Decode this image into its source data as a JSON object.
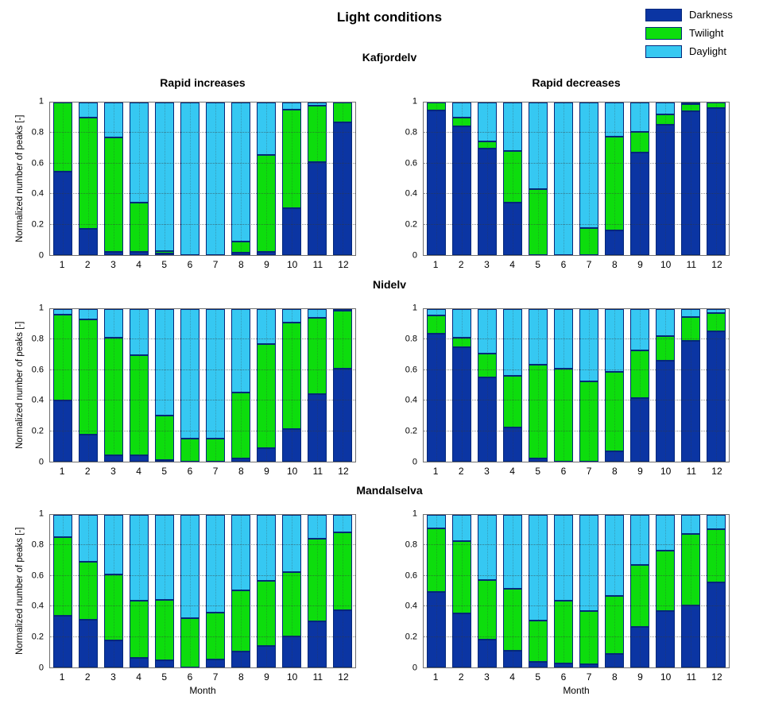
{
  "figure": {
    "title": "Light conditions",
    "colors": {
      "darkness": "#0b35a3",
      "twilight": "#0ddd0d",
      "daylight": "#36c8f2",
      "bar_edge": "#04287a",
      "axis": "#6f6f6f"
    },
    "legend": {
      "position": "top-right",
      "items": [
        {
          "label": "Darkness",
          "key": "darkness"
        },
        {
          "label": "Twilight",
          "key": "twilight"
        },
        {
          "label": "Daylight",
          "key": "daylight"
        }
      ]
    }
  },
  "rows": [
    {
      "title": "Kafjordelv"
    },
    {
      "title": "Nidelv"
    },
    {
      "title": "Mandalselva"
    }
  ],
  "chart_data": [
    {
      "type": "bar",
      "stacked": true,
      "river": "Kafjordelv",
      "title": "Rapid increases",
      "xlabel": "",
      "ylabel": "Normalized number of peaks [-]",
      "ylim": [
        0,
        1
      ],
      "yticks": [
        0,
        0.2,
        0.4,
        0.6,
        0.8,
        1
      ],
      "grid": true,
      "categories": [
        1,
        2,
        3,
        4,
        5,
        6,
        7,
        8,
        9,
        10,
        11,
        12
      ],
      "series": [
        {
          "name": "Darkness",
          "values": [
            0.545,
            0.17,
            0.02,
            0.02,
            0.005,
            0,
            0,
            0.015,
            0.02,
            0.305,
            0.61,
            0.87
          ]
        },
        {
          "name": "Twilight",
          "values": [
            0.455,
            0.73,
            0.75,
            0.325,
            0.015,
            0,
            0,
            0.075,
            0.635,
            0.65,
            0.37,
            0.13
          ]
        },
        {
          "name": "Daylight",
          "values": [
            0,
            0.1,
            0.23,
            0.655,
            0.98,
            1,
            1,
            0.91,
            0.345,
            0.045,
            0.02,
            0
          ]
        }
      ]
    },
    {
      "type": "bar",
      "stacked": true,
      "river": "Kafjordelv",
      "title": "Rapid decreases",
      "xlabel": "",
      "ylabel": "",
      "ylim": [
        0,
        1
      ],
      "yticks": [
        0,
        0.2,
        0.4,
        0.6,
        0.8,
        1
      ],
      "grid": true,
      "categories": [
        1,
        2,
        3,
        4,
        5,
        6,
        7,
        8,
        9,
        10,
        11,
        12
      ],
      "series": [
        {
          "name": "Darkness",
          "values": [
            0.95,
            0.845,
            0.7,
            0.345,
            0,
            0,
            0,
            0.16,
            0.67,
            0.855,
            0.945,
            0.965
          ]
        },
        {
          "name": "Twilight",
          "values": [
            0.05,
            0.055,
            0.045,
            0.34,
            0.43,
            0,
            0.175,
            0.615,
            0.14,
            0.065,
            0.045,
            0.035
          ]
        },
        {
          "name": "Daylight",
          "values": [
            0,
            0.1,
            0.255,
            0.315,
            0.57,
            1,
            0.825,
            0.225,
            0.19,
            0.08,
            0.01,
            0
          ]
        }
      ]
    },
    {
      "type": "bar",
      "stacked": true,
      "river": "Nidelv",
      "title": "",
      "xlabel": "",
      "ylabel": "Normalized number of peaks [-]",
      "ylim": [
        0,
        1
      ],
      "yticks": [
        0,
        0.2,
        0.4,
        0.6,
        0.8,
        1
      ],
      "grid": true,
      "categories": [
        1,
        2,
        3,
        4,
        5,
        6,
        7,
        8,
        9,
        10,
        11,
        12
      ],
      "series": [
        {
          "name": "Darkness",
          "values": [
            0.4,
            0.175,
            0.04,
            0.04,
            0.005,
            0,
            0,
            0.02,
            0.09,
            0.215,
            0.445,
            0.61
          ]
        },
        {
          "name": "Twilight",
          "values": [
            0.565,
            0.755,
            0.775,
            0.66,
            0.295,
            0.15,
            0.15,
            0.435,
            0.68,
            0.695,
            0.5,
            0.38
          ]
        },
        {
          "name": "Daylight",
          "values": [
            0.035,
            0.07,
            0.185,
            0.3,
            0.7,
            0.85,
            0.85,
            0.545,
            0.23,
            0.09,
            0.055,
            0.01
          ]
        }
      ]
    },
    {
      "type": "bar",
      "stacked": true,
      "river": "Nidelv",
      "title": "",
      "xlabel": "",
      "ylabel": "",
      "ylim": [
        0,
        1
      ],
      "yticks": [
        0,
        0.2,
        0.4,
        0.6,
        0.8,
        1
      ],
      "grid": true,
      "categories": [
        1,
        2,
        3,
        4,
        5,
        6,
        7,
        8,
        9,
        10,
        11,
        12
      ],
      "series": [
        {
          "name": "Darkness",
          "values": [
            0.84,
            0.75,
            0.55,
            0.225,
            0.02,
            0,
            0,
            0.07,
            0.415,
            0.66,
            0.79,
            0.855
          ]
        },
        {
          "name": "Twilight",
          "values": [
            0.12,
            0.065,
            0.16,
            0.34,
            0.615,
            0.61,
            0.525,
            0.52,
            0.315,
            0.165,
            0.16,
            0.12
          ]
        },
        {
          "name": "Daylight",
          "values": [
            0.04,
            0.185,
            0.29,
            0.435,
            0.365,
            0.39,
            0.475,
            0.41,
            0.27,
            0.175,
            0.05,
            0.025
          ]
        }
      ]
    },
    {
      "type": "bar",
      "stacked": true,
      "river": "Mandalselva",
      "title": "",
      "xlabel": "Month",
      "ylabel": "Normalized number of peaks [-]",
      "ylim": [
        0,
        1
      ],
      "yticks": [
        0,
        0.2,
        0.4,
        0.6,
        0.8,
        1
      ],
      "grid": true,
      "categories": [
        1,
        2,
        3,
        4,
        5,
        6,
        7,
        8,
        9,
        10,
        11,
        12
      ],
      "series": [
        {
          "name": "Darkness",
          "values": [
            0.34,
            0.31,
            0.175,
            0.06,
            0.045,
            0,
            0.05,
            0.105,
            0.14,
            0.205,
            0.3,
            0.375
          ]
        },
        {
          "name": "Twilight",
          "values": [
            0.515,
            0.385,
            0.435,
            0.375,
            0.4,
            0.325,
            0.31,
            0.4,
            0.43,
            0.42,
            0.545,
            0.51
          ]
        },
        {
          "name": "Daylight",
          "values": [
            0.145,
            0.305,
            0.39,
            0.565,
            0.555,
            0.675,
            0.64,
            0.495,
            0.43,
            0.375,
            0.155,
            0.115
          ]
        }
      ]
    },
    {
      "type": "bar",
      "stacked": true,
      "river": "Mandalselva",
      "title": "",
      "xlabel": "Month",
      "ylabel": "",
      "ylim": [
        0,
        1
      ],
      "yticks": [
        0,
        0.2,
        0.4,
        0.6,
        0.8,
        1
      ],
      "grid": true,
      "categories": [
        1,
        2,
        3,
        4,
        5,
        6,
        7,
        8,
        9,
        10,
        11,
        12
      ],
      "series": [
        {
          "name": "Darkness",
          "values": [
            0.495,
            0.355,
            0.18,
            0.11,
            0.035,
            0.025,
            0.02,
            0.09,
            0.265,
            0.37,
            0.405,
            0.555
          ]
        },
        {
          "name": "Twilight",
          "values": [
            0.415,
            0.475,
            0.395,
            0.405,
            0.27,
            0.415,
            0.35,
            0.38,
            0.405,
            0.395,
            0.47,
            0.35
          ]
        },
        {
          "name": "Daylight",
          "values": [
            0.09,
            0.17,
            0.425,
            0.485,
            0.695,
            0.56,
            0.63,
            0.53,
            0.33,
            0.235,
            0.125,
            0.095
          ]
        }
      ]
    }
  ]
}
